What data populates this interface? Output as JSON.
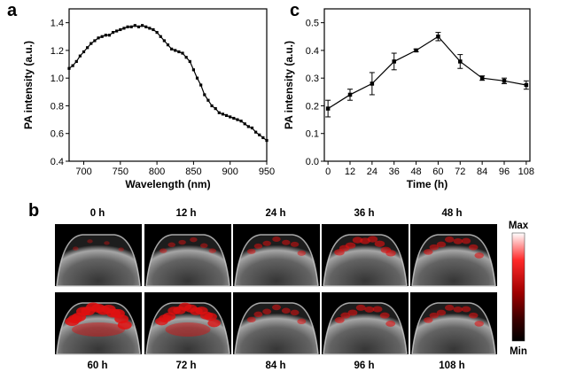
{
  "panels": {
    "a": "a",
    "b": "b",
    "c": "c"
  },
  "chart_data": [
    {
      "panel": "a",
      "type": "line",
      "xlabel": "Wavelength (nm)",
      "ylabel": "PA intensity (a.u.)",
      "xlim": [
        680,
        950
      ],
      "ylim": [
        0.4,
        1.5
      ],
      "xticks": [
        700,
        750,
        800,
        850,
        900,
        950
      ],
      "yticks": [
        0.4,
        0.6,
        0.8,
        1.0,
        1.2,
        1.4
      ],
      "marker": "square",
      "series": [
        {
          "x": [
            680,
            685,
            690,
            695,
            700,
            705,
            710,
            715,
            720,
            725,
            730,
            735,
            740,
            745,
            750,
            755,
            760,
            765,
            770,
            775,
            780,
            785,
            790,
            795,
            800,
            805,
            810,
            815,
            820,
            825,
            830,
            835,
            840,
            845,
            850,
            855,
            860,
            865,
            870,
            875,
            880,
            885,
            890,
            895,
            900,
            905,
            910,
            915,
            920,
            925,
            930,
            935,
            940,
            945,
            950
          ],
          "y": [
            1.07,
            1.09,
            1.12,
            1.16,
            1.19,
            1.22,
            1.25,
            1.27,
            1.29,
            1.3,
            1.31,
            1.31,
            1.33,
            1.34,
            1.35,
            1.36,
            1.37,
            1.37,
            1.38,
            1.37,
            1.38,
            1.37,
            1.36,
            1.35,
            1.33,
            1.3,
            1.27,
            1.24,
            1.21,
            1.2,
            1.19,
            1.18,
            1.15,
            1.12,
            1.06,
            1.0,
            0.95,
            0.88,
            0.84,
            0.8,
            0.78,
            0.75,
            0.74,
            0.73,
            0.72,
            0.71,
            0.7,
            0.69,
            0.67,
            0.65,
            0.64,
            0.61,
            0.59,
            0.57,
            0.55
          ]
        }
      ]
    },
    {
      "panel": "c",
      "type": "line",
      "xlabel": "Time (h)",
      "ylabel": "PA intensity (a.u.)",
      "xlim": [
        -2,
        110
      ],
      "ylim": [
        0,
        0.55
      ],
      "xticks": [
        0,
        12,
        24,
        36,
        48,
        60,
        72,
        84,
        96,
        108
      ],
      "yticks": [
        0.0,
        0.1,
        0.2,
        0.3,
        0.4,
        0.5
      ],
      "marker": "square",
      "series": [
        {
          "x": [
            0,
            12,
            24,
            36,
            48,
            60,
            72,
            84,
            96,
            108
          ],
          "y": [
            0.19,
            0.24,
            0.28,
            0.36,
            0.4,
            0.45,
            0.36,
            0.3,
            0.29,
            0.275
          ],
          "err": [
            0.03,
            0.02,
            0.04,
            0.03,
            0.005,
            0.015,
            0.025,
            0.008,
            0.01,
            0.015
          ]
        }
      ]
    }
  ],
  "images": {
    "top_labels": [
      "0 h",
      "12 h",
      "24 h",
      "36 h",
      "48 h"
    ],
    "bottom_labels": [
      "60 h",
      "72 h",
      "84 h",
      "96 h",
      "108 h"
    ],
    "signal": [
      0.05,
      0.25,
      0.35,
      0.55,
      0.45,
      1.0,
      0.85,
      0.4,
      0.5,
      0.45
    ],
    "colorbar_max": "Max",
    "colorbar_min": "Min",
    "colors": {
      "background": "#000000",
      "tissue": "#8a8a8a",
      "signal": "#e01010"
    }
  }
}
